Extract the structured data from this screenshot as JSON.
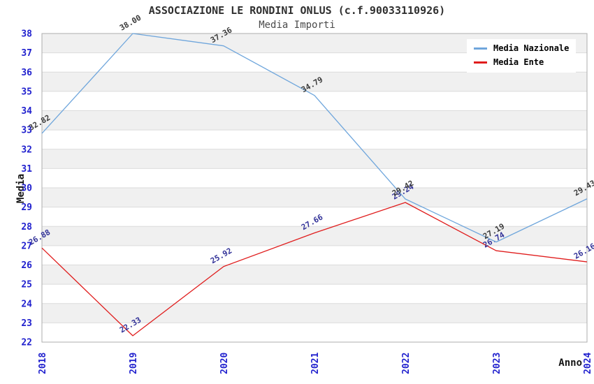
{
  "chart_data": {
    "type": "line",
    "title": "ASSOCIAZIONE LE RONDINI ONLUS (c.f.90033110926)",
    "subtitle": "Media Importi",
    "xlabel": "Anno",
    "ylabel": "Media",
    "categories": [
      "2018",
      "2019",
      "2020",
      "2021",
      "2022",
      "2023",
      "2024"
    ],
    "series": [
      {
        "name": "Media Nazionale",
        "color": "#6FA6DC",
        "label_color": "#3C3C3C",
        "values": [
          32.82,
          38.0,
          37.36,
          34.79,
          29.42,
          27.19,
          29.43
        ]
      },
      {
        "name": "Media Ente",
        "color": "#E01D1D",
        "label_color": "#333399",
        "values": [
          26.88,
          22.33,
          25.92,
          27.66,
          29.24,
          26.74,
          26.16
        ]
      }
    ],
    "ylim": [
      22,
      38
    ],
    "ytick_step": 1,
    "grid": "horizontal-bands",
    "legend_position": "top-right",
    "colors": {
      "tick_label": "#2121CE",
      "band": "#F0F0F0",
      "grid_line": "#DBDBDB",
      "plot_border": "#ADADAD",
      "background": "#FFFFFF"
    }
  }
}
